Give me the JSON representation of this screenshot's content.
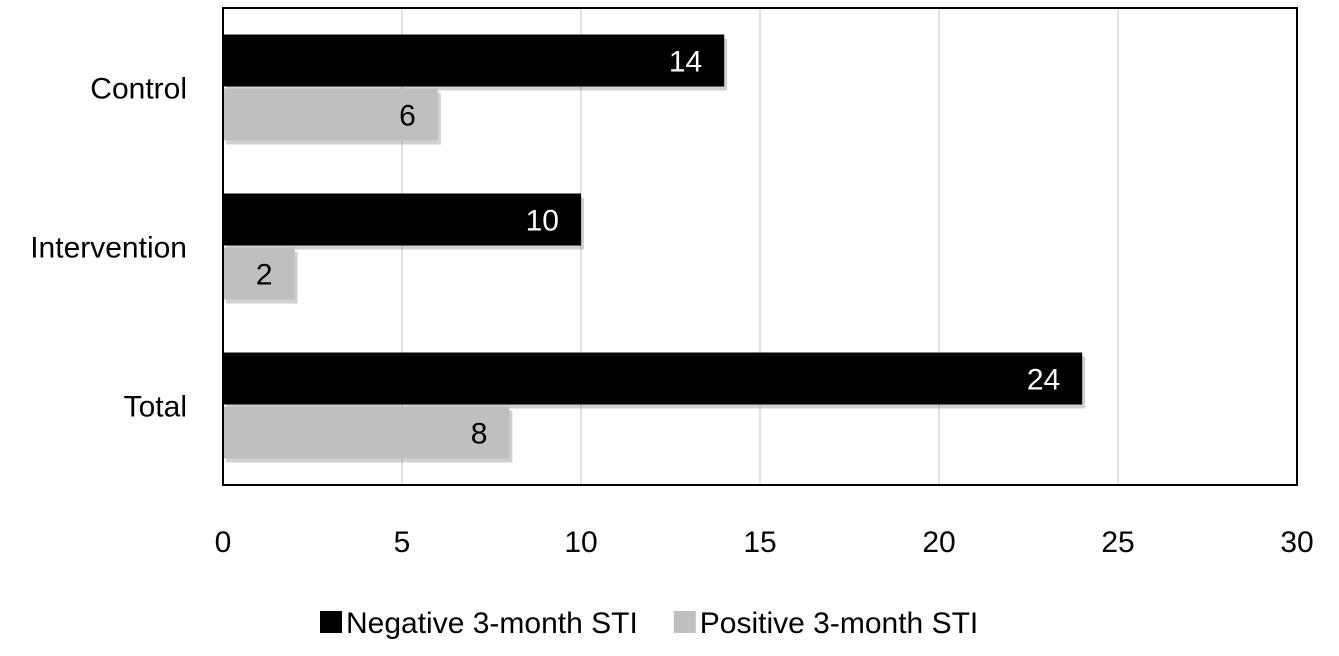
{
  "chart_data": {
    "type": "bar",
    "orientation": "horizontal",
    "categories": [
      "Control",
      "Intervention",
      "Total"
    ],
    "series": [
      {
        "name": "Negative 3-month STI",
        "values": [
          14,
          10,
          24
        ],
        "color": "#000000",
        "label_color": "#ffffff"
      },
      {
        "name": "Positive 3-month STI",
        "values": [
          6,
          2,
          8
        ],
        "color": "#bfbfbf",
        "label_color": "#000000"
      }
    ],
    "xlim": [
      0,
      30
    ],
    "xticks": [
      "0",
      "5",
      "10",
      "15",
      "20",
      "25",
      "30"
    ],
    "grid": true,
    "legend_position": "bottom",
    "title": "",
    "xlabel": "",
    "ylabel": ""
  }
}
